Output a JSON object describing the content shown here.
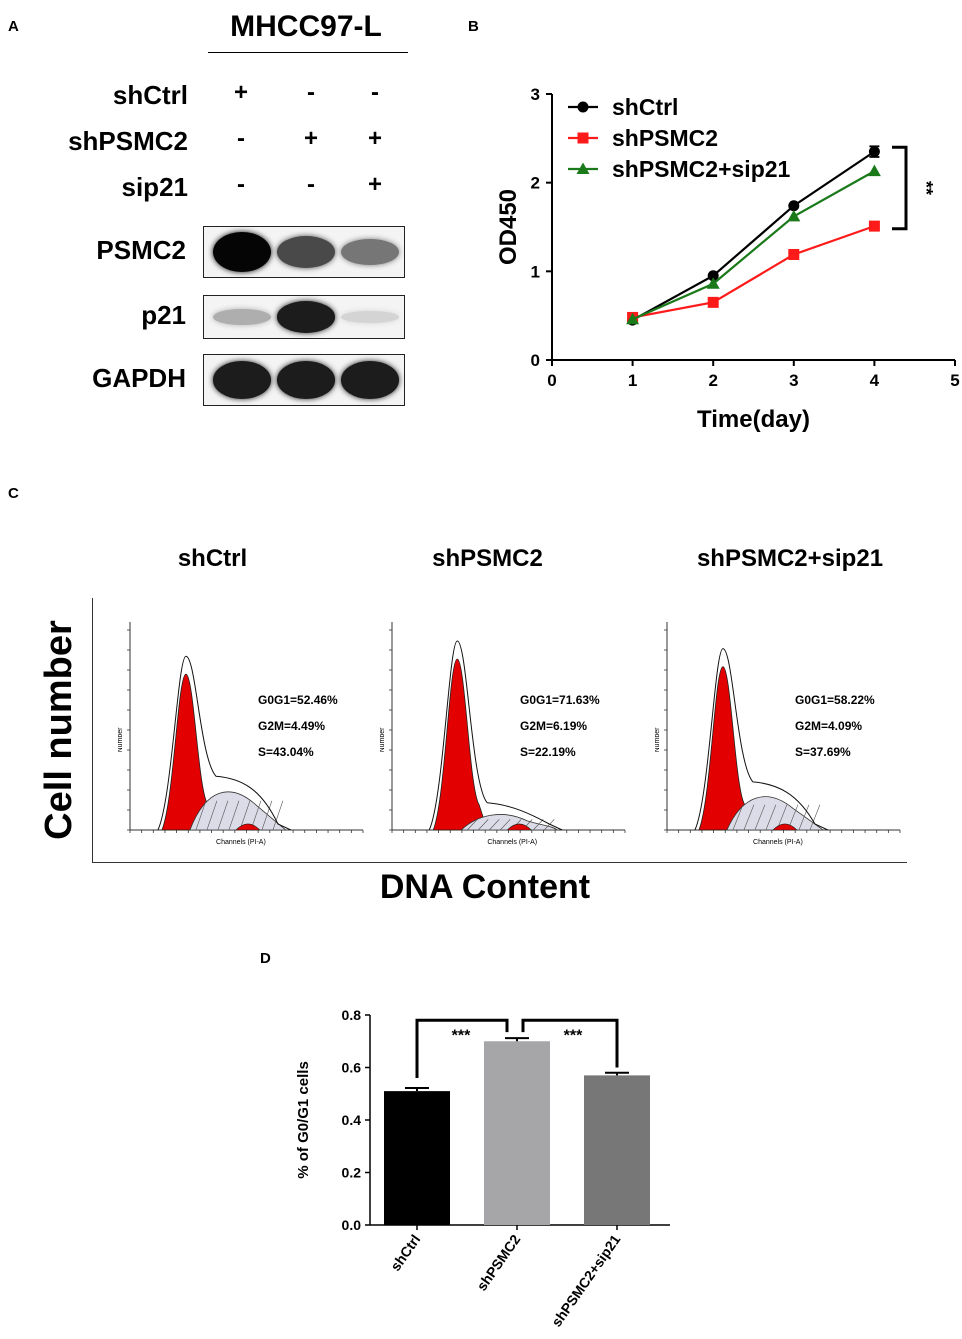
{
  "panels": {
    "a": "A",
    "b": "B",
    "c": "C",
    "d": "D"
  },
  "western_blot": {
    "cell_line": "MHCC97-L",
    "conditions": [
      {
        "label": "shCtrl",
        "signs": [
          "+",
          "-",
          "-"
        ]
      },
      {
        "label": "shPSMC2",
        "signs": [
          "-",
          "+",
          "+"
        ]
      },
      {
        "label": "sip21",
        "signs": [
          "-",
          "-",
          "+"
        ]
      }
    ],
    "blots": [
      {
        "label": "PSMC2",
        "intensity": [
          1.0,
          0.7,
          0.5
        ]
      },
      {
        "label": "p21",
        "intensity": [
          0.25,
          0.9,
          0.08
        ]
      },
      {
        "label": "GAPDH",
        "intensity": [
          0.9,
          0.9,
          0.9
        ]
      }
    ]
  },
  "chart_data": [
    {
      "type": "line",
      "panel": "B",
      "xlabel": "Time(day)",
      "ylabel": "OD450",
      "xlim": [
        0,
        5
      ],
      "ylim": [
        0,
        3
      ],
      "x_ticks": [
        "0",
        "1",
        "2",
        "3",
        "4",
        "5"
      ],
      "y_ticks": [
        "0",
        "1",
        "2",
        "3"
      ],
      "x": [
        1,
        2,
        3,
        4
      ],
      "series": [
        {
          "name": "shCtrl",
          "color": "#000000",
          "marker": "circle",
          "values": [
            0.45,
            0.95,
            1.74,
            2.35
          ],
          "err": [
            0,
            0,
            0,
            0.06
          ]
        },
        {
          "name": "shPSMC2",
          "color": "#ff1a1a",
          "marker": "square",
          "values": [
            0.48,
            0.65,
            1.19,
            1.51
          ],
          "err": [
            0,
            0,
            0,
            0
          ]
        },
        {
          "name": "shPSMC2+sip21",
          "color": "#1a7a1a",
          "marker": "triangle",
          "values": [
            0.46,
            0.86,
            1.62,
            2.13
          ],
          "err": [
            0,
            0,
            0,
            0
          ]
        }
      ],
      "significance": "**",
      "legend": "top-left"
    },
    {
      "type": "bar",
      "panel": "D",
      "categories": [
        "shCtrl",
        "shPSMC2",
        "shPSMC2+sip21"
      ],
      "values": [
        0.51,
        0.7,
        0.57
      ],
      "errors": [
        0.012,
        0.012,
        0.01
      ],
      "colors": [
        "#000000",
        "#a6a6a8",
        "#777777"
      ],
      "ylabel": "% of G0/G1 cells",
      "ylim": [
        0,
        0.8
      ],
      "y_ticks": [
        "0.0",
        "0.2",
        "0.4",
        "0.6",
        "0.8"
      ],
      "significance": [
        "***",
        "***"
      ]
    }
  ],
  "flow": {
    "ylabel": "Cell number",
    "xlabel": "DNA Content",
    "axis_small_label": "Channels (PI-A)",
    "axis_y_small": "Number",
    "samples": [
      {
        "title": "shCtrl",
        "g0g1": "G0G1=52.46%",
        "g2m": "G2M=4.49%",
        "s": "S=43.04%"
      },
      {
        "title": "shPSMC2",
        "g0g1": "G0G1=71.63%",
        "g2m": "G2M=6.19%",
        "s": "S=22.19%"
      },
      {
        "title": "shPSMC2+sip21",
        "g0g1": "G0G1=58.22%",
        "g2m": "G2M=4.09%",
        "s": "S=37.69%"
      }
    ]
  }
}
